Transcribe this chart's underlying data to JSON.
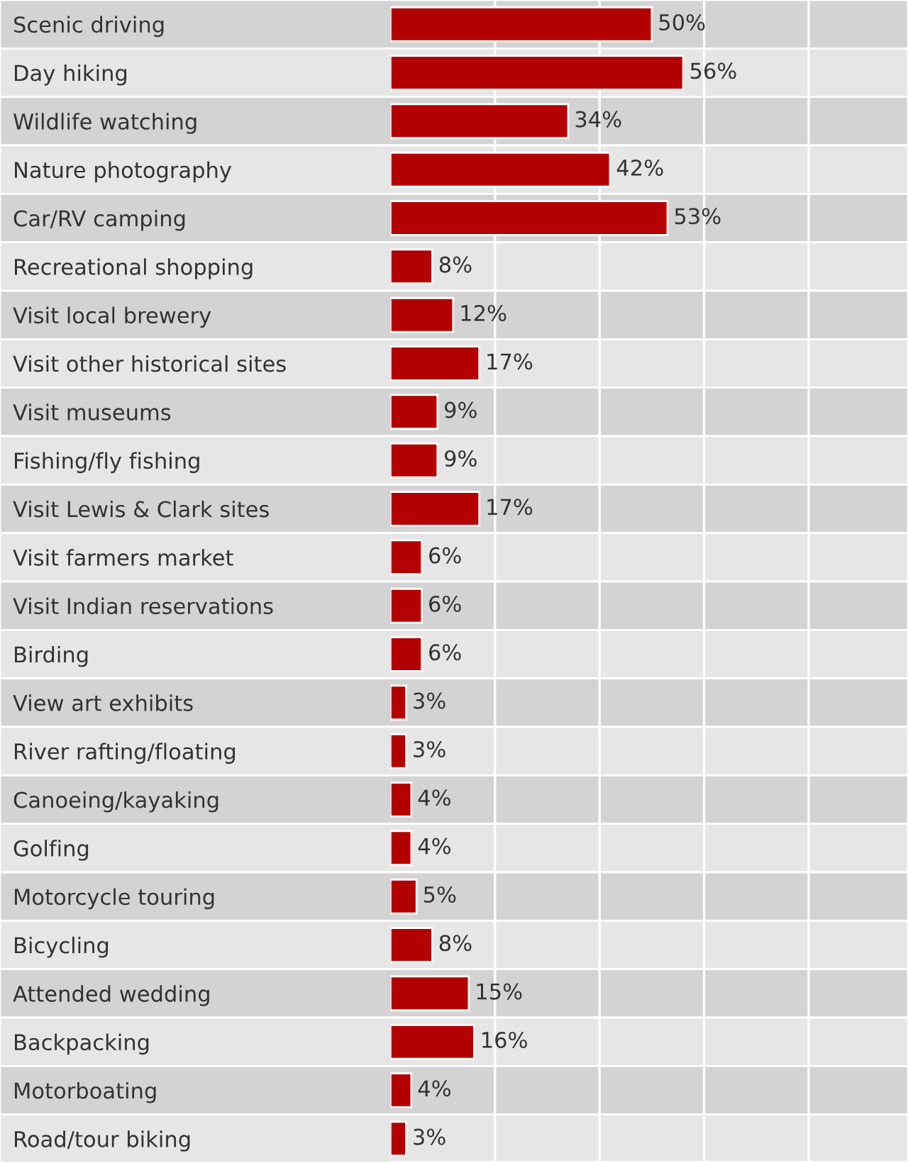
{
  "chart_data": {
    "type": "bar",
    "orientation": "horizontal",
    "categories": [
      "Scenic driving",
      "Day hiking",
      "Wildlife watching",
      "Nature photography",
      "Car/RV camping",
      "Recreational shopping",
      "Visit local brewery",
      "Visit other historical sites",
      "Visit museums",
      "Fishing/fly fishing",
      "Visit Lewis & Clark sites",
      "Visit farmers market",
      "Visit Indian reservations",
      "Birding",
      "View art exhibits",
      "River rafting/floating",
      "Canoeing/kayaking",
      "Golfing",
      "Motorcycle touring",
      "Bicycling",
      "Attended wedding",
      "Backpacking",
      "Motorboating",
      "Road/tour biking"
    ],
    "values": [
      50,
      56,
      34,
      42,
      53,
      8,
      12,
      17,
      9,
      9,
      17,
      6,
      6,
      6,
      3,
      3,
      4,
      4,
      5,
      8,
      15,
      16,
      4,
      3
    ],
    "value_labels": [
      "50%",
      "56%",
      "34%",
      "42%",
      "53%",
      "8%",
      "12%",
      "17%",
      "9%",
      "9%",
      "17%",
      "6%",
      "6%",
      "6%",
      "3%",
      "3%",
      "4%",
      "4%",
      "5%",
      "8%",
      "15%",
      "16%",
      "4%",
      "3%"
    ],
    "color": "#b30000",
    "xlim": [
      0,
      99
    ],
    "xticks": [
      {
        "value": 20,
        "label": null
      },
      {
        "value": 40,
        "label": null
      },
      {
        "value": 60,
        "label": null
      },
      {
        "value": 80,
        "label": null
      }
    ],
    "grid": "x",
    "tick_labels": "y"
  }
}
